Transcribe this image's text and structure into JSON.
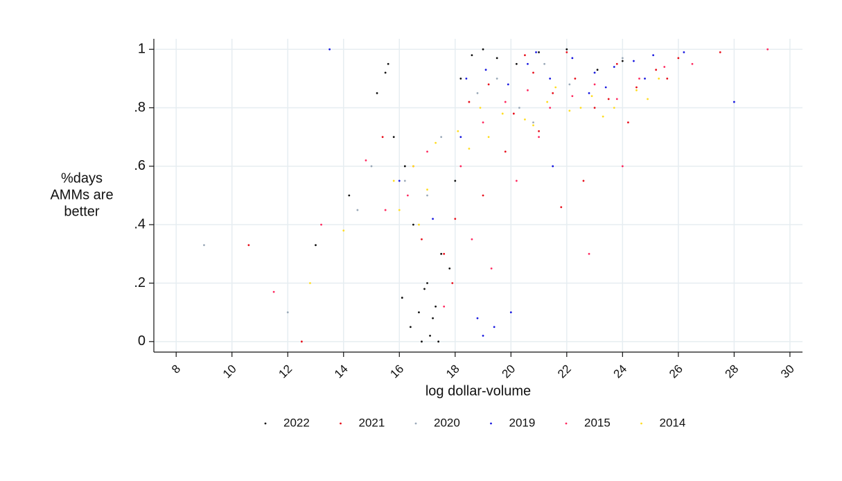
{
  "chart_data": {
    "type": "scatter",
    "x_label": "log dollar-volume",
    "y_label": [
      "%days",
      "AMMs are",
      "better"
    ],
    "xlim": [
      7.2,
      30.45
    ],
    "ylim": [
      -0.036,
      1.036
    ],
    "xticks": [
      8,
      10,
      12,
      14,
      16,
      18,
      20,
      22,
      24,
      26,
      28,
      30
    ],
    "yticks": [
      0,
      {
        "value": 0.2,
        "label": ".2"
      },
      {
        "value": 0.4,
        "label": ".4"
      },
      {
        "value": 0.6,
        "label": ".6"
      },
      {
        "value": 0.8,
        "label": ".8"
      },
      1
    ],
    "grid": true,
    "legend": "bottom",
    "series": [
      {
        "name": "2022",
        "color": "#111111",
        "x": [
          15.2,
          15.5,
          15.8,
          16.1,
          16.4,
          16.7,
          17.0,
          17.2,
          17.5,
          17.8,
          16.2,
          16.9,
          17.3,
          15.6,
          16.5,
          17.1,
          18.2,
          18.6,
          19.0,
          19.5,
          20.2,
          21.0,
          22.0,
          23.1,
          24.0,
          13.0,
          14.2,
          16.8,
          17.4,
          18.0
        ],
        "values": [
          0.85,
          0.92,
          0.7,
          0.15,
          0.05,
          0.1,
          0.2,
          0.08,
          0.3,
          0.25,
          0.6,
          0.18,
          0.12,
          0.95,
          0.4,
          0.02,
          0.9,
          0.98,
          1.0,
          0.97,
          0.95,
          0.99,
          1.0,
          0.93,
          0.96,
          0.33,
          0.5,
          0.0,
          0.0,
          0.55
        ]
      },
      {
        "name": "2021",
        "color": "#e8101c",
        "x": [
          18.5,
          19.2,
          20.1,
          20.8,
          21.5,
          22.3,
          23.0,
          23.8,
          24.5,
          25.2,
          26.0,
          19.8,
          21.0,
          22.6,
          17.6,
          18.0,
          16.5,
          15.4,
          24.2,
          20.5,
          22.0,
          23.5,
          12.5,
          10.6,
          27.5,
          19.0,
          21.8,
          17.9,
          16.8,
          25.6
        ],
        "values": [
          0.82,
          0.88,
          0.78,
          0.92,
          0.85,
          0.9,
          0.8,
          0.95,
          0.87,
          0.93,
          0.97,
          0.65,
          0.72,
          0.55,
          0.3,
          0.42,
          0.6,
          0.7,
          0.75,
          0.98,
          0.99,
          0.83,
          0.0,
          0.33,
          0.99,
          0.5,
          0.46,
          0.2,
          0.35,
          0.9
        ]
      },
      {
        "name": "2020",
        "color": "#9aa9b8",
        "x": [
          15.0,
          16.2,
          17.5,
          18.8,
          19.5,
          20.3,
          21.2,
          22.1,
          23.0,
          24.0,
          9.0,
          12.0,
          14.5,
          17.0,
          20.8
        ],
        "values": [
          0.6,
          0.55,
          0.7,
          0.85,
          0.9,
          0.8,
          0.95,
          0.88,
          0.92,
          0.97,
          0.33,
          0.1,
          0.45,
          0.5,
          0.75
        ]
      },
      {
        "name": "2019",
        "color": "#1a1ae0",
        "x": [
          18.4,
          19.1,
          19.9,
          20.6,
          21.4,
          22.2,
          23.0,
          23.7,
          24.4,
          25.1,
          26.2,
          19.0,
          19.4,
          18.8,
          20.0,
          21.5,
          16.0,
          17.2,
          22.8,
          24.8,
          28.0,
          20.9,
          13.5,
          18.2,
          23.4
        ],
        "values": [
          0.9,
          0.93,
          0.88,
          0.95,
          0.9,
          0.97,
          0.92,
          0.94,
          0.96,
          0.98,
          0.99,
          0.02,
          0.05,
          0.08,
          0.1,
          0.6,
          0.55,
          0.42,
          0.85,
          0.9,
          0.82,
          0.99,
          1.0,
          0.7,
          0.87
        ]
      },
      {
        "name": "2015",
        "color": "#ff2a60",
        "x": [
          17.0,
          18.2,
          19.0,
          19.8,
          20.6,
          21.4,
          22.2,
          23.0,
          23.8,
          24.6,
          25.5,
          16.3,
          15.5,
          18.6,
          20.2,
          22.8,
          13.2,
          11.5,
          29.2,
          21.0,
          19.3,
          24.0,
          17.6,
          26.5,
          14.8
        ],
        "values": [
          0.65,
          0.6,
          0.75,
          0.82,
          0.86,
          0.8,
          0.84,
          0.88,
          0.83,
          0.9,
          0.94,
          0.5,
          0.45,
          0.35,
          0.55,
          0.3,
          0.4,
          0.17,
          1.0,
          0.7,
          0.25,
          0.6,
          0.12,
          0.95,
          0.62
        ]
      },
      {
        "name": "2014",
        "color": "#ffdd22",
        "x": [
          15.8,
          16.5,
          17.3,
          18.1,
          18.9,
          19.7,
          20.5,
          21.3,
          22.1,
          22.9,
          23.7,
          24.5,
          25.3,
          16.0,
          17.0,
          19.2,
          20.8,
          22.5,
          14.0,
          12.8,
          21.6,
          18.5,
          23.3,
          24.9,
          16.7
        ],
        "values": [
          0.55,
          0.6,
          0.68,
          0.72,
          0.8,
          0.78,
          0.76,
          0.82,
          0.79,
          0.84,
          0.8,
          0.86,
          0.9,
          0.45,
          0.52,
          0.7,
          0.74,
          0.8,
          0.38,
          0.2,
          0.87,
          0.66,
          0.77,
          0.83,
          0.4
        ]
      }
    ]
  }
}
